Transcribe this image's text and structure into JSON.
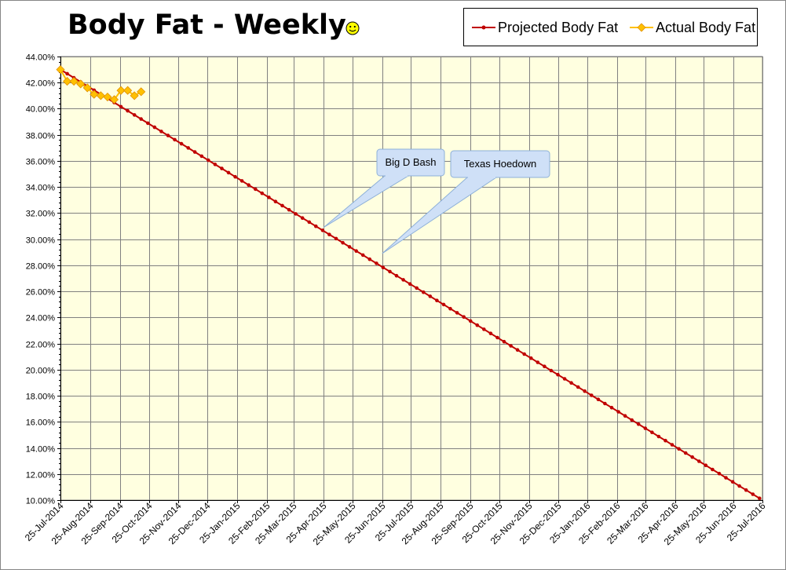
{
  "colors": {
    "plot_bg": "#ffffe0",
    "grid": "#808080",
    "projected": "#c00000",
    "actual_fill": "#ffc000",
    "actual_stroke": "#e09000",
    "callout_fill": "#cfe0f7",
    "callout_stroke": "#8eb0d8"
  },
  "icons": {
    "smiley": "smiley-face-icon"
  },
  "chart_data": {
    "type": "line",
    "title": "Body Fat - Weekly",
    "xlabel": "",
    "ylabel": "",
    "x_axis": {
      "type": "date",
      "range": [
        "2014-07-25",
        "2016-07-25"
      ],
      "tick_labels": [
        "25-Jul-2014",
        "25-Aug-2014",
        "25-Sep-2014",
        "25-Oct-2014",
        "25-Nov-2014",
        "25-Dec-2014",
        "25-Jan-2015",
        "25-Feb-2015",
        "25-Mar-2015",
        "25-Apr-2015",
        "25-May-2015",
        "25-Jun-2015",
        "25-Jul-2015",
        "25-Aug-2015",
        "25-Sep-2015",
        "25-Oct-2015",
        "25-Nov-2015",
        "25-Dec-2015",
        "25-Jan-2016",
        "25-Feb-2016",
        "25-Mar-2016",
        "25-Apr-2016",
        "25-May-2016",
        "25-Jun-2016",
        "25-Jul-2016"
      ]
    },
    "y_axis": {
      "range": [
        0.1,
        0.44
      ],
      "tick_labels": [
        "10.00%",
        "12.00%",
        "14.00%",
        "16.00%",
        "18.00%",
        "20.00%",
        "22.00%",
        "24.00%",
        "26.00%",
        "28.00%",
        "30.00%",
        "32.00%",
        "34.00%",
        "36.00%",
        "38.00%",
        "40.00%",
        "42.00%",
        "44.00%"
      ],
      "format": "percent"
    },
    "grid": true,
    "legend_position": "top-right",
    "series": [
      {
        "name": "Projected Body Fat",
        "marker": "circle",
        "x_start": "2014-07-25",
        "x_end": "2016-07-25",
        "step": "weekly",
        "y_start": 0.43,
        "y_end": 0.1
      },
      {
        "name": "Actual Body Fat",
        "marker": "diamond",
        "points": [
          {
            "x": "2014-07-25",
            "y": 0.43
          },
          {
            "x": "2014-08-01",
            "y": 0.421
          },
          {
            "x": "2014-08-08",
            "y": 0.421
          },
          {
            "x": "2014-08-15",
            "y": 0.419
          },
          {
            "x": "2014-08-22",
            "y": 0.416
          },
          {
            "x": "2014-08-29",
            "y": 0.411
          },
          {
            "x": "2014-09-05",
            "y": 0.41
          },
          {
            "x": "2014-09-12",
            "y": 0.409
          },
          {
            "x": "2014-09-19",
            "y": 0.407
          },
          {
            "x": "2014-09-26",
            "y": 0.414
          },
          {
            "x": "2014-10-03",
            "y": 0.414
          },
          {
            "x": "2014-10-10",
            "y": 0.41
          },
          {
            "x": "2014-10-17",
            "y": 0.413
          }
        ]
      }
    ],
    "annotations": [
      {
        "text": "Big D Bash",
        "x": "2015-04-25",
        "y": 0.309
      },
      {
        "text": "Texas Hoedown",
        "x": "2015-06-25",
        "y": 0.289
      }
    ]
  }
}
